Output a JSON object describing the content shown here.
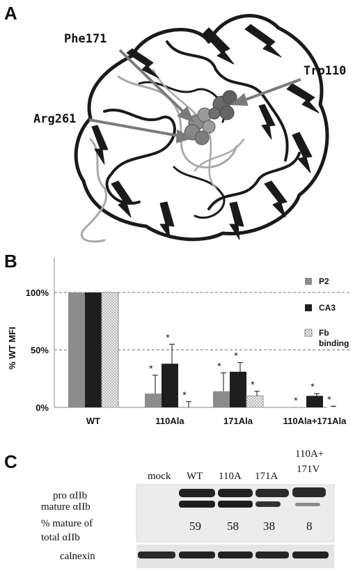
{
  "panels": {
    "a": "A",
    "b": "B",
    "c": "C"
  },
  "structure": {
    "residue_labels": [
      "Phe171",
      "Trp110",
      "Arg261"
    ]
  },
  "chart_data": {
    "type": "bar",
    "categories": [
      "WT",
      "110Ala",
      "171Ala",
      "110Ala+171Ala"
    ],
    "ylabel": "% WT MFI",
    "ylim": [
      0,
      100
    ],
    "yticks": [
      "0%",
      "50%",
      "100%"
    ],
    "legend_position": "right",
    "series": [
      {
        "name": "P2",
        "values": [
          100,
          12,
          14,
          0
        ],
        "errors": [
          0,
          16,
          16,
          0
        ],
        "color": "#8c8c8c"
      },
      {
        "name": "CA3",
        "values": [
          100,
          38,
          31,
          10
        ],
        "errors": [
          0,
          17,
          8,
          2
        ],
        "color": "#1e1e1e"
      },
      {
        "name": "Fb binding",
        "values": [
          100,
          0,
          10,
          0
        ],
        "errors": [
          0,
          5,
          4,
          1
        ],
        "color": "#f3f3f3"
      }
    ],
    "significance": [
      [
        false,
        true,
        true,
        true
      ],
      [
        false,
        true,
        true,
        true
      ],
      [
        false,
        true,
        true,
        true
      ]
    ]
  },
  "blot": {
    "lanes": [
      "mock",
      "WT",
      "110A",
      "171A",
      "110A+",
      "171V"
    ],
    "row_labels": [
      "pro αIIb",
      "mature αIIb",
      "% mature of",
      "total αIIb",
      "calnexin"
    ],
    "percent_mature": [
      "59",
      "58",
      "38",
      "8"
    ]
  }
}
